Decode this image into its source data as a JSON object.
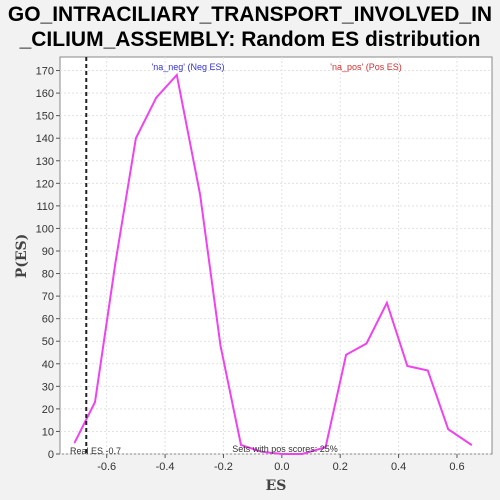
{
  "title_line1": "GO_INTRACILIARY_TRANSPORT_INVOLVED_IN",
  "title_line2": "_CILIUM_ASSEMBLY: Random ES distribution",
  "chart_data": {
    "type": "line",
    "xlabel": "ES",
    "ylabel": "P(ES)",
    "xlim": [
      -0.76,
      0.72
    ],
    "ylim": [
      0,
      176
    ],
    "xticks": [
      "-0.6",
      "-0.4",
      "-0.2",
      "0.0",
      "0.2",
      "0.4",
      "0.6"
    ],
    "xtick_values": [
      -0.6,
      -0.4,
      -0.2,
      0.0,
      0.2,
      0.4,
      0.6
    ],
    "yticks": [
      "0",
      "10",
      "20",
      "30",
      "40",
      "50",
      "60",
      "70",
      "80",
      "90",
      "100",
      "110",
      "120",
      "130",
      "140",
      "150",
      "160",
      "170"
    ],
    "ytick_values": [
      0,
      10,
      20,
      30,
      40,
      50,
      60,
      70,
      80,
      90,
      100,
      110,
      120,
      130,
      140,
      150,
      160,
      170
    ],
    "grid": true,
    "series": [
      {
        "color": "#ee44ee",
        "x": [
          -0.71,
          -0.64,
          -0.57,
          -0.5,
          -0.43,
          -0.36,
          -0.28,
          -0.21,
          -0.14,
          -0.07,
          0.0,
          0.07,
          0.15,
          0.22,
          0.29,
          0.36,
          0.43,
          0.5,
          0.57,
          0.65
        ],
        "y": [
          5,
          23,
          85,
          140,
          158,
          168,
          115,
          48,
          4,
          1,
          0,
          0,
          3,
          44,
          49,
          67,
          39,
          37,
          11,
          4
        ]
      }
    ],
    "real_es": -0.7,
    "real_es_line_x": -0.67,
    "annotations": {
      "neg_label": "'na_neg' (Neg ES)",
      "pos_label": "'na_pos' (Pos ES)",
      "real_es_label": "Real ES -0.7",
      "pos_scores_label": "Sets with pos scores: 25%"
    },
    "colors": {
      "neg_label": "#3333cc",
      "pos_label": "#cc3333",
      "line": "#ee44ee"
    }
  }
}
